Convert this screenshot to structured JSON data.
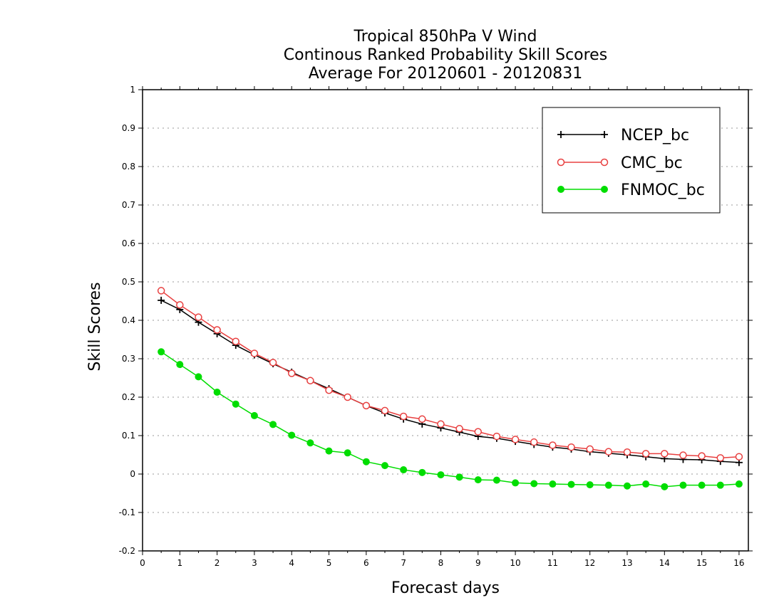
{
  "chart_data": {
    "type": "line",
    "title": [
      "Tropical 850hPa V Wind",
      "Continous Ranked Probability Skill Scores",
      "Average For 20120601 - 20120831"
    ],
    "xlabel": "Forecast days",
    "ylabel": "Skill Scores",
    "xlim": [
      0,
      16.25
    ],
    "ylim": [
      -0.2,
      1
    ],
    "xticks": [
      0,
      1,
      2,
      3,
      4,
      5,
      6,
      7,
      8,
      9,
      10,
      11,
      12,
      13,
      14,
      15,
      16
    ],
    "yticks": [
      -0.2,
      -0.1,
      0,
      0.1,
      0.2,
      0.3,
      0.4,
      0.5,
      0.6,
      0.7,
      0.8,
      0.9,
      1
    ],
    "ytick_labels": [
      "-0.2",
      "-0.1",
      "0",
      "0.1",
      "0.2",
      "0.3",
      "0.4",
      "0.5",
      "0.6",
      "0.7",
      "0.8",
      "0.9",
      "1"
    ],
    "grid": "horizontal-dotted",
    "legend_position": "top-right",
    "x": [
      0.5,
      1,
      1.5,
      2,
      2.5,
      3,
      3.5,
      4,
      4.5,
      5,
      5.5,
      6,
      6.5,
      7,
      7.5,
      8,
      8.5,
      9,
      9.5,
      10,
      10.5,
      11,
      11.5,
      12,
      12.5,
      13,
      13.5,
      14,
      14.5,
      15,
      15.5,
      16
    ],
    "series": [
      {
        "name": "NCEP_bc",
        "color": "#000000",
        "marker": "plus",
        "values": [
          0.452,
          0.428,
          0.395,
          0.365,
          0.335,
          0.31,
          0.287,
          0.265,
          0.243,
          0.222,
          0.2,
          0.178,
          0.159,
          0.143,
          0.13,
          0.12,
          0.109,
          0.098,
          0.093,
          0.085,
          0.077,
          0.07,
          0.065,
          0.058,
          0.054,
          0.05,
          0.045,
          0.04,
          0.038,
          0.037,
          0.033,
          0.03
        ]
      },
      {
        "name": "CMC_bc",
        "color": "#e84040",
        "marker": "open-circle",
        "values": [
          0.477,
          0.44,
          0.408,
          0.375,
          0.345,
          0.314,
          0.29,
          0.262,
          0.243,
          0.218,
          0.2,
          0.178,
          0.165,
          0.15,
          0.143,
          0.13,
          0.118,
          0.11,
          0.098,
          0.09,
          0.083,
          0.075,
          0.07,
          0.065,
          0.058,
          0.057,
          0.053,
          0.053,
          0.049,
          0.047,
          0.042,
          0.045
        ]
      },
      {
        "name": "FNMOC_bc",
        "color": "#00dd00",
        "marker": "filled-circle",
        "values": [
          0.318,
          0.285,
          0.253,
          0.213,
          0.182,
          0.152,
          0.129,
          0.101,
          0.081,
          0.06,
          0.055,
          0.032,
          0.022,
          0.011,
          0.004,
          -0.002,
          -0.008,
          -0.015,
          -0.016,
          -0.023,
          -0.025,
          -0.026,
          -0.027,
          -0.028,
          -0.029,
          -0.031,
          -0.026,
          -0.033,
          -0.029,
          -0.029,
          -0.029,
          -0.026
        ]
      }
    ]
  }
}
